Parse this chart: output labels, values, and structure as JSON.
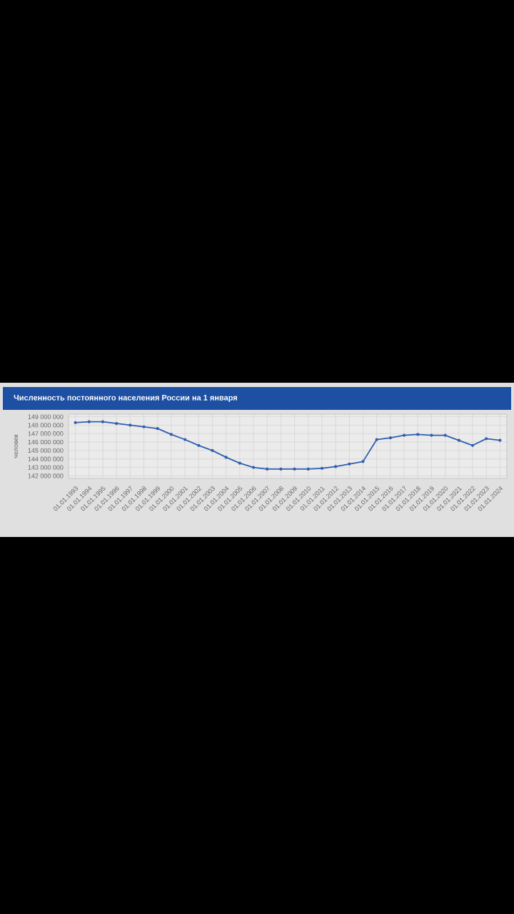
{
  "chart_data": {
    "type": "line",
    "title": "Численность постоянного населения России на 1 января",
    "ylabel": "человек",
    "categories": [
      "01.01.1993",
      "01.01.1994",
      "01.01.1995",
      "01.01.1996",
      "01.01.1997",
      "01.01.1998",
      "01.01.1999",
      "01.01.2000",
      "01.01.2001",
      "01.01.2002",
      "01.01.2003",
      "01.01.2004",
      "01.01.2005",
      "01.01.2006",
      "01.01.2007",
      "01.01.2008",
      "01.01.2009",
      "01.01.2010",
      "01.01.2011",
      "01.01.2012",
      "01.01.2013",
      "01.01.2014",
      "01.01.2015",
      "01.01.2016",
      "01.01.2017",
      "01.01.2018",
      "01.01.2019",
      "01.01.2020",
      "01.01.2021",
      "01.01.2022",
      "01.01.2023",
      "01.01.2024"
    ],
    "series": [
      {
        "color": "#2f5fb0",
        "values": [
          148300000,
          148400000,
          148400000,
          148200000,
          148000000,
          147800000,
          147600000,
          146900000,
          146300000,
          145600000,
          145000000,
          144200000,
          143500000,
          143000000,
          142800000,
          142800000,
          142800000,
          142800000,
          142900000,
          143100000,
          143400000,
          143700000,
          146300000,
          146500000,
          146800000,
          146900000,
          146800000,
          146800000,
          146200000,
          145600000,
          146400000,
          146200000
        ]
      }
    ],
    "ylim": [
      141700000,
      149300000
    ],
    "yticks": [
      {
        "value": 142000000,
        "label": "142 000 000"
      },
      {
        "value": 143000000,
        "label": "143 000 000"
      },
      {
        "value": 144000000,
        "label": "144 000 000"
      },
      {
        "value": 145000000,
        "label": "145 000 000"
      },
      {
        "value": 146000000,
        "label": "146 000 000"
      },
      {
        "value": 147000000,
        "label": "147 000 000"
      },
      {
        "value": 148000000,
        "label": "148 000 000"
      },
      {
        "value": 149000000,
        "label": "149 000 000"
      }
    ],
    "grid": true,
    "marker": "circle",
    "line_style": "solid"
  }
}
